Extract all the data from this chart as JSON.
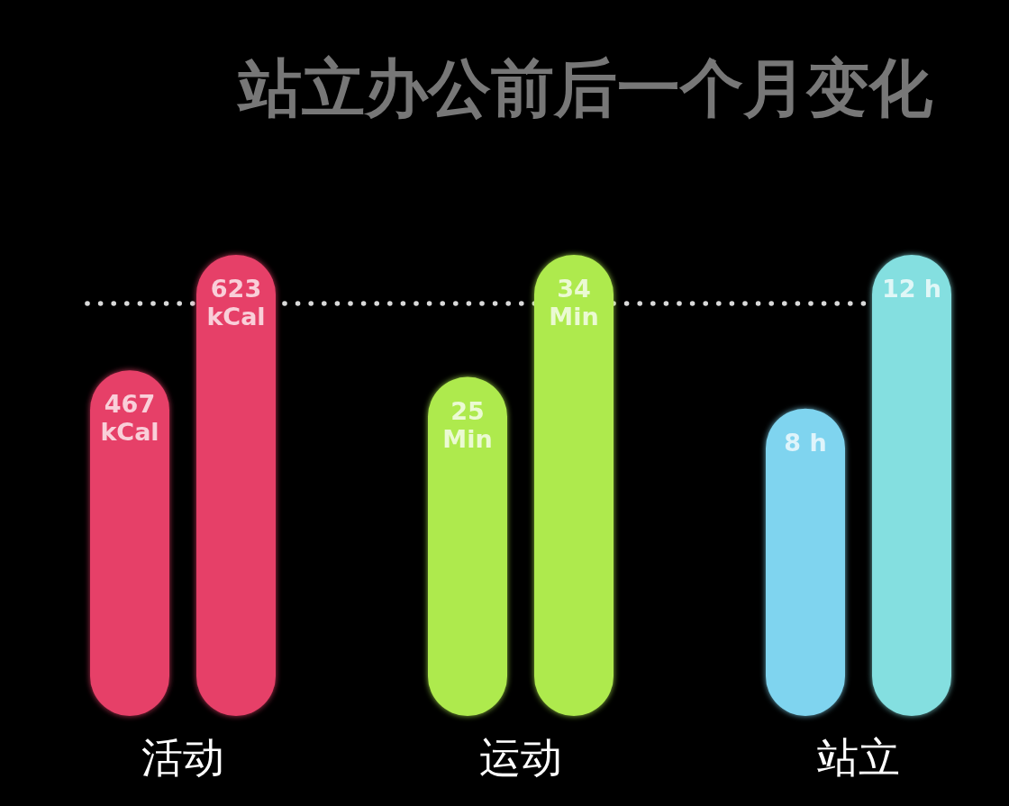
{
  "chart_data": [
    {
      "type": "bar",
      "title": "站立办公前后一个月变化",
      "xlabel": "活动",
      "categories": [
        null,
        null
      ],
      "values": [
        467,
        623
      ],
      "colors": [
        "#e63f68",
        "#e63f68"
      ],
      "value_labels": [
        "467\nkCal",
        "623\nkCal"
      ]
    },
    {
      "type": "bar",
      "xlabel": "运动",
      "categories": [
        null,
        null
      ],
      "values": [
        25,
        34
      ],
      "colors": [
        "#aeea4e",
        "#aeea4e"
      ],
      "value_labels": [
        "25\nMin",
        "34\nMin"
      ]
    },
    {
      "type": "bar",
      "xlabel": "站立",
      "categories": [
        null,
        null
      ],
      "values": [
        8,
        12
      ],
      "colors": [
        "#7fd4ef",
        "#84dfe0"
      ],
      "value_labels": [
        "8 h",
        "12 h"
      ]
    }
  ]
}
